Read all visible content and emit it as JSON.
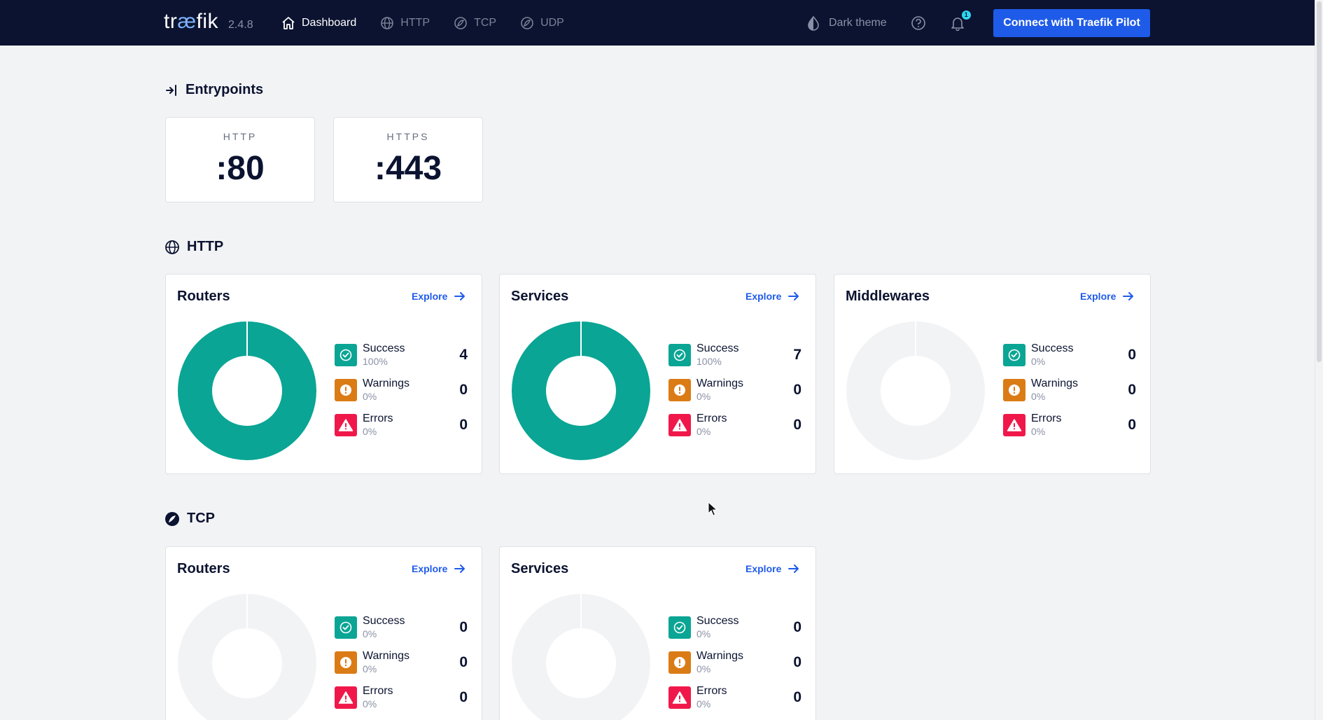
{
  "topbar": {
    "logo_pre": "tr",
    "logo_ae": "æ",
    "logo_post": "fik",
    "version": "2.4.8",
    "nav": [
      {
        "label": "Dashboard",
        "icon": "home-icon",
        "active": true
      },
      {
        "label": "HTTP",
        "icon": "globe-icon",
        "active": false
      },
      {
        "label": "TCP",
        "icon": "tcp-icon",
        "active": false
      },
      {
        "label": "UDP",
        "icon": "udp-icon",
        "active": false
      }
    ],
    "theme_label": "Dark theme",
    "notification_count": "1",
    "pilot_button": "Connect with Traefik Pilot"
  },
  "colors": {
    "navbar": "#0b1330",
    "accent": "#1f5be9",
    "success": "#0aa594",
    "warning": "#db7b15",
    "error": "#f0184a",
    "donut_empty": "#f2f3f5"
  },
  "entrypoints": {
    "title": "Entrypoints",
    "items": [
      {
        "name": "HTTP",
        "port": ":80"
      },
      {
        "name": "HTTPS",
        "port": ":443"
      }
    ]
  },
  "http": {
    "title": "HTTP",
    "cards": [
      {
        "title": "Routers",
        "explore": "Explore",
        "stats": {
          "success": {
            "label": "Success",
            "pct": "100%",
            "count": "4"
          },
          "warnings": {
            "label": "Warnings",
            "pct": "0%",
            "count": "0"
          },
          "errors": {
            "label": "Errors",
            "pct": "0%",
            "count": "0"
          }
        }
      },
      {
        "title": "Services",
        "explore": "Explore",
        "stats": {
          "success": {
            "label": "Success",
            "pct": "100%",
            "count": "7"
          },
          "warnings": {
            "label": "Warnings",
            "pct": "0%",
            "count": "0"
          },
          "errors": {
            "label": "Errors",
            "pct": "0%",
            "count": "0"
          }
        }
      },
      {
        "title": "Middlewares",
        "explore": "Explore",
        "stats": {
          "success": {
            "label": "Success",
            "pct": "0%",
            "count": "0"
          },
          "warnings": {
            "label": "Warnings",
            "pct": "0%",
            "count": "0"
          },
          "errors": {
            "label": "Errors",
            "pct": "0%",
            "count": "0"
          }
        }
      }
    ]
  },
  "tcp": {
    "title": "TCP",
    "cards": [
      {
        "title": "Routers",
        "explore": "Explore",
        "stats": {
          "success": {
            "label": "Success",
            "pct": "0%",
            "count": "0"
          },
          "warnings": {
            "label": "Warnings",
            "pct": "0%",
            "count": "0"
          },
          "errors": {
            "label": "Errors",
            "pct": "0%",
            "count": "0"
          }
        }
      },
      {
        "title": "Services",
        "explore": "Explore",
        "stats": {
          "success": {
            "label": "Success",
            "pct": "0%",
            "count": "0"
          },
          "warnings": {
            "label": "Warnings",
            "pct": "0%",
            "count": "0"
          },
          "errors": {
            "label": "Errors",
            "pct": "0%",
            "count": "0"
          }
        }
      }
    ]
  }
}
